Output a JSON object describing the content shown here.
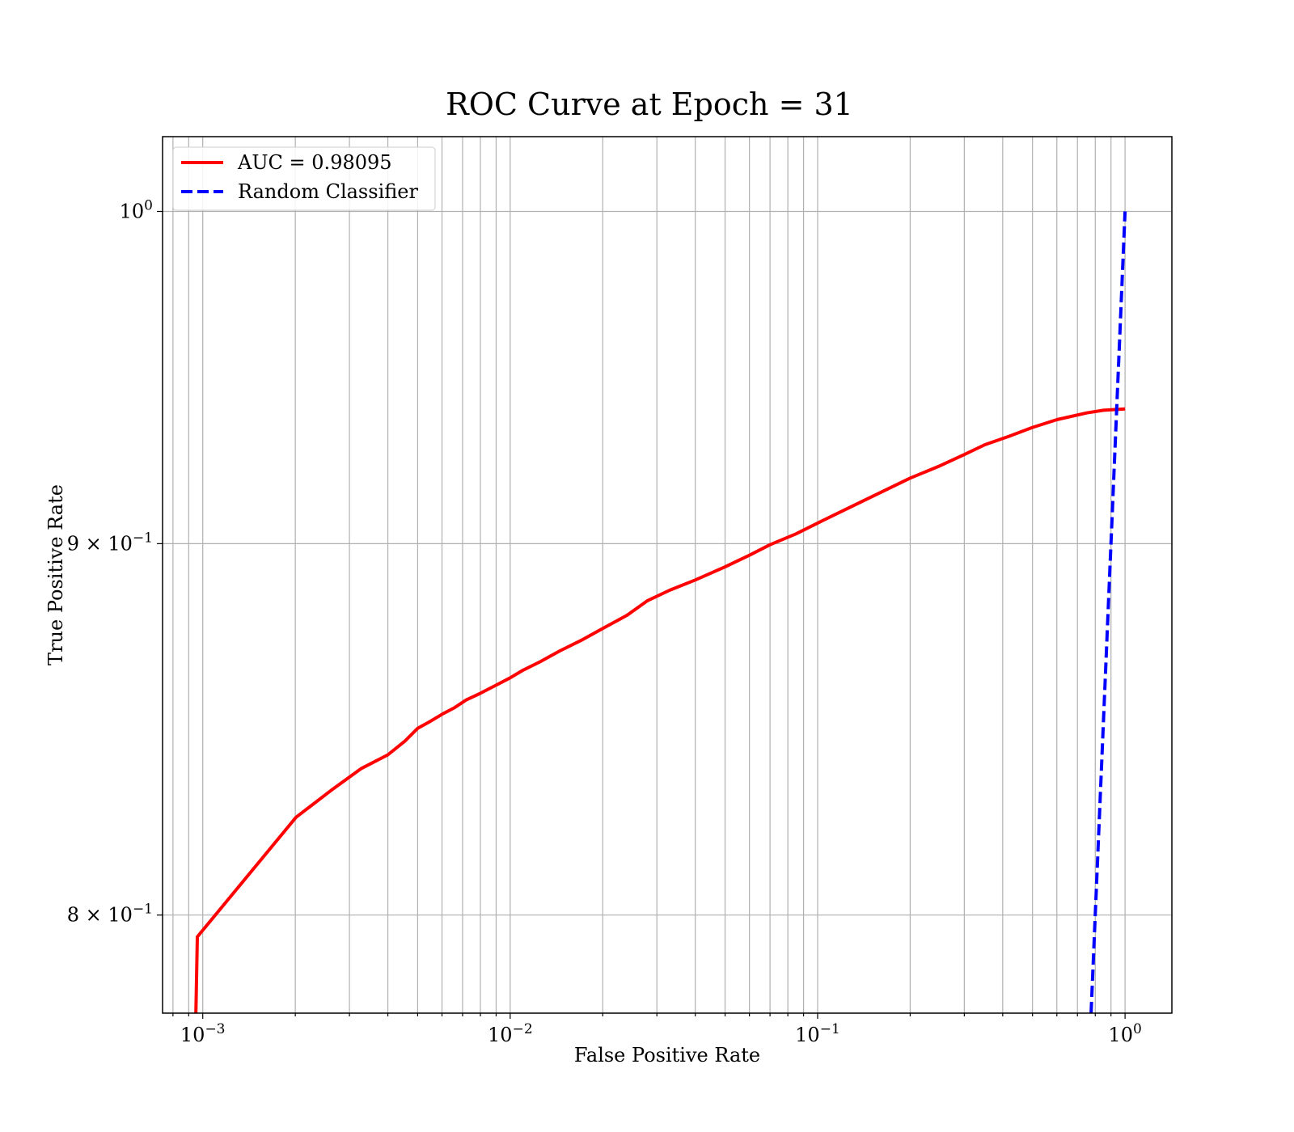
{
  "chart_data": {
    "type": "line",
    "title": "ROC Curve at Epoch = 31",
    "xlabel": "False Positive Rate",
    "ylabel": "True Positive Rate",
    "xscale": "log",
    "yscale": "log",
    "xlim": [
      0.00074,
      1.42
    ],
    "ylim": [
      0.7755,
      1.024
    ],
    "grid": "both (major and minor)",
    "legend_position": "upper-left",
    "x_ticks": [
      {
        "value": 0.001,
        "base": "10",
        "exp": "−3"
      },
      {
        "value": 0.01,
        "base": "10",
        "exp": "−2"
      },
      {
        "value": 0.1,
        "base": "10",
        "exp": "−1"
      },
      {
        "value": 1,
        "base": "10",
        "exp": "0"
      }
    ],
    "y_ticks": [
      {
        "value": 1.0,
        "base": "10",
        "exp": "0"
      },
      {
        "value": 0.9,
        "base": "9 × 10",
        "exp": "−1"
      },
      {
        "value": 0.8,
        "base": "8 × 10",
        "exp": "−1"
      }
    ],
    "series": [
      {
        "name": "AUC = 0.98095",
        "color": "#ff0000",
        "style": "solid",
        "points": [
          [
            0.00095,
            0.7755
          ],
          [
            0.00096,
            0.7945
          ],
          [
            0.00201,
            0.8252
          ],
          [
            0.00262,
            0.8323
          ],
          [
            0.00327,
            0.838
          ],
          [
            0.004,
            0.8417
          ],
          [
            0.00455,
            0.8454
          ],
          [
            0.005,
            0.8488
          ],
          [
            0.0055,
            0.8507
          ],
          [
            0.006,
            0.8526
          ],
          [
            0.0066,
            0.8544
          ],
          [
            0.0072,
            0.8565
          ],
          [
            0.008,
            0.8583
          ],
          [
            0.009,
            0.8605
          ],
          [
            0.01,
            0.8625
          ],
          [
            0.011,
            0.8646
          ],
          [
            0.0125,
            0.8669
          ],
          [
            0.0145,
            0.8699
          ],
          [
            0.017,
            0.8728
          ],
          [
            0.02,
            0.8761
          ],
          [
            0.024,
            0.8798
          ],
          [
            0.028,
            0.8839
          ],
          [
            0.033,
            0.8868
          ],
          [
            0.04,
            0.8897
          ],
          [
            0.05,
            0.8934
          ],
          [
            0.06,
            0.8967
          ],
          [
            0.07,
            0.8997
          ],
          [
            0.085,
            0.9028
          ],
          [
            0.1,
            0.9059
          ],
          [
            0.125,
            0.9101
          ],
          [
            0.15,
            0.9135
          ],
          [
            0.2,
            0.9189
          ],
          [
            0.25,
            0.9225
          ],
          [
            0.3,
            0.9258
          ],
          [
            0.35,
            0.9287
          ],
          [
            0.42,
            0.9312
          ],
          [
            0.5,
            0.9338
          ],
          [
            0.6,
            0.9361
          ],
          [
            0.75,
            0.9381
          ],
          [
            0.85,
            0.9389
          ],
          [
            1.0,
            0.9393
          ]
        ]
      },
      {
        "name": "Random Classifier",
        "color": "#0000ff",
        "style": "dashed",
        "points": [
          [
            0.7755,
            0.7755
          ],
          [
            1.0,
            1.0
          ]
        ]
      }
    ]
  }
}
